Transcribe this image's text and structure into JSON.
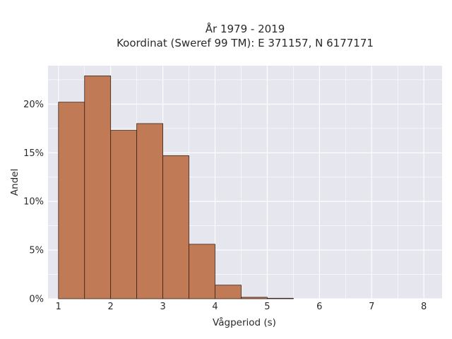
{
  "chart_data": {
    "type": "bar",
    "title_lines": [
      "År 1979 - 2019",
      "Koordinat (Sweref 99 TM): E 371157, N 6177171"
    ],
    "xlabel": "Vågperiod (s)",
    "ylabel": "Andel",
    "xlim": [
      0.8,
      8.35
    ],
    "ylim": [
      0,
      0.2395
    ],
    "x_ticks": [
      1,
      2,
      3,
      4,
      5,
      6,
      7,
      8
    ],
    "x_tick_labels": [
      "1",
      "2",
      "3",
      "4",
      "5",
      "6",
      "7",
      "8"
    ],
    "y_ticks": [
      0,
      0.05,
      0.1,
      0.15,
      0.2
    ],
    "y_tick_labels": [
      "0%",
      "5%",
      "10%",
      "15%",
      "20%"
    ],
    "grid": true,
    "legend": "none",
    "bins": [
      {
        "x0": 1.0,
        "x1": 1.5,
        "value": 0.202
      },
      {
        "x0": 1.5,
        "x1": 2.0,
        "value": 0.229
      },
      {
        "x0": 2.0,
        "x1": 2.5,
        "value": 0.173
      },
      {
        "x0": 2.5,
        "x1": 3.0,
        "value": 0.18
      },
      {
        "x0": 3.0,
        "x1": 3.5,
        "value": 0.147
      },
      {
        "x0": 3.5,
        "x1": 4.0,
        "value": 0.056
      },
      {
        "x0": 4.0,
        "x1": 4.5,
        "value": 0.014
      },
      {
        "x0": 4.5,
        "x1": 5.0,
        "value": 0.0015
      },
      {
        "x0": 5.0,
        "x1": 5.5,
        "value": 0.0005
      }
    ],
    "colors": {
      "bar_fill": "#c07a56",
      "bar_edge": "#3a2418",
      "plot_bg": "#e6e6ef",
      "grid": "#ffffff"
    }
  }
}
